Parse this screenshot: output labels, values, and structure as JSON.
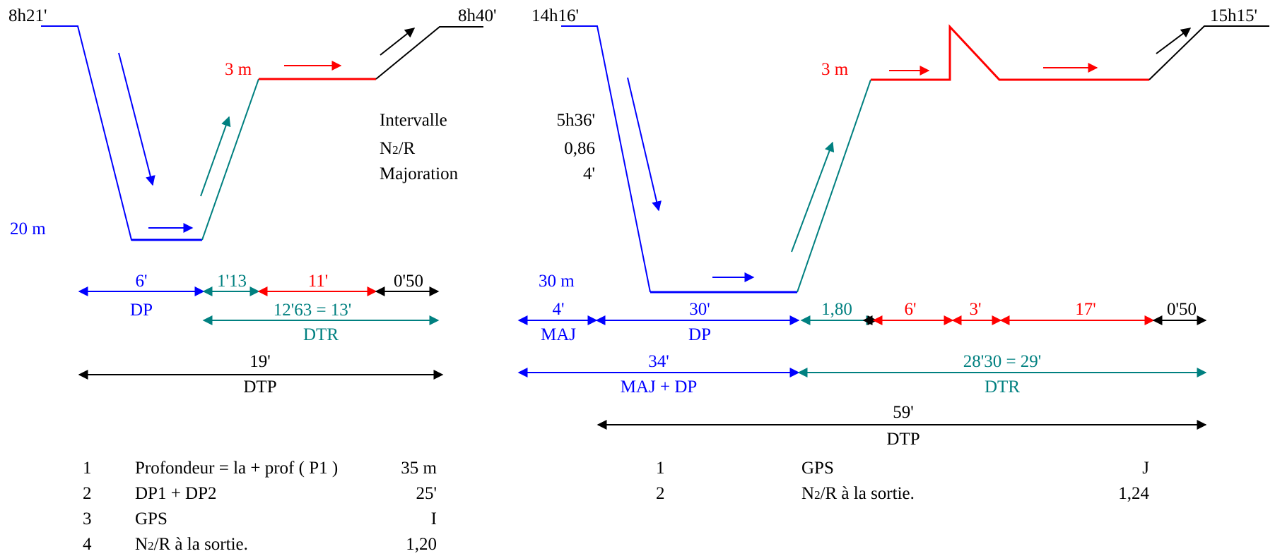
{
  "colors": {
    "descent": "#0000ff",
    "stop": "#ff0000",
    "ascent": "#008080",
    "surface": "#000000"
  },
  "dive1": {
    "start_time": "8h21'",
    "end_time": "8h40'",
    "depth": "20 m",
    "stop_depth": "3 m",
    "segments": {
      "dp": "6'",
      "ascent": "1'13",
      "stop": "11'",
      "surface": "0'50"
    },
    "labels": {
      "dp": "DP",
      "dtr_value": "12'63 = 13'",
      "dtr": "DTR",
      "dtp_value": "19'",
      "dtp": "DTP"
    }
  },
  "interval": {
    "rows": [
      {
        "label": "Intervalle",
        "value": "5h36'"
      },
      {
        "label_main": "N",
        "label_sub": "2",
        "label_rest": "/R",
        "value": "0,86"
      },
      {
        "label": "Majoration",
        "value": "4'"
      }
    ]
  },
  "dive2": {
    "start_time": "14h16'",
    "end_time": "15h15'",
    "depth": "30 m",
    "stop_depth": "3 m",
    "segments": {
      "maj": "4'",
      "dp": "30'",
      "ascent": "1,80",
      "stop1": "6'",
      "stop2": "3'",
      "stop3": "17'",
      "surface": "0'50"
    },
    "labels": {
      "maj": "MAJ",
      "dp": "DP",
      "majdp_value": "34'",
      "majdp": "MAJ + DP",
      "dtr_value": "28'30 = 29'",
      "dtr": "DTR",
      "dtp_value": "59'",
      "dtp": "DTP"
    }
  },
  "notes1": [
    {
      "num": "1",
      "label": "Profondeur = la + prof ( P1 )",
      "value": "35 m"
    },
    {
      "num": "2",
      "label": "DP1 + DP2",
      "value": "25'"
    },
    {
      "num": "3",
      "label": "GPS",
      "value": "I"
    },
    {
      "num": "4",
      "label_main": "N",
      "label_sub": "2",
      "label_rest": "/R à la sortie.",
      "value": "1,20"
    }
  ],
  "notes2": [
    {
      "num": "1",
      "label": "GPS",
      "value": "J"
    },
    {
      "num": "2",
      "label_main": "N",
      "label_sub": "2",
      "label_rest": "/R à la sortie.",
      "value": "1,24"
    }
  ]
}
